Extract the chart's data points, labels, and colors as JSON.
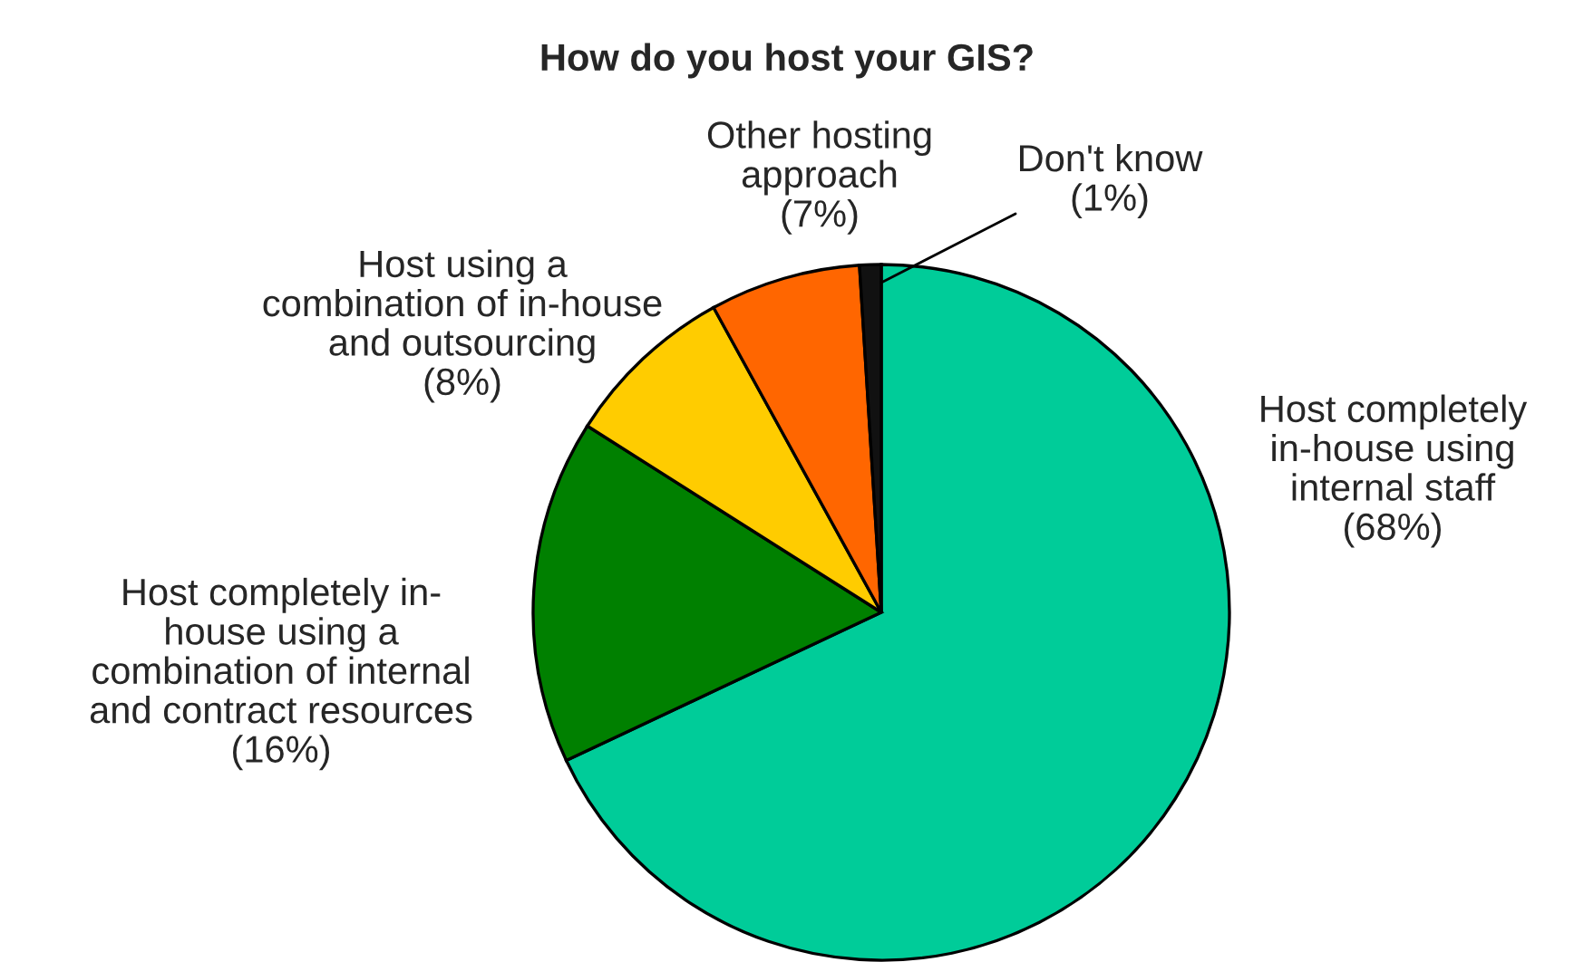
{
  "chart_data": {
    "type": "pie",
    "title": "How do you host your GIS?",
    "categories": [
      "Host completely\nin-house using\ninternal staff",
      "Host completely in-\nhouse using a\ncombination of internal\nand contract resources",
      "Host using a\ncombination of in-house\nand outsourcing",
      "Other hosting\napproach",
      "Don't know"
    ],
    "values": [
      68,
      16,
      8,
      7,
      1
    ],
    "value_labels": [
      "(68%)",
      "(16%)",
      "(8%)",
      "(7%)",
      "(1%)"
    ],
    "colors": [
      "#00cc99",
      "#008000",
      "#ffcc00",
      "#ff6600",
      "#111111"
    ]
  }
}
